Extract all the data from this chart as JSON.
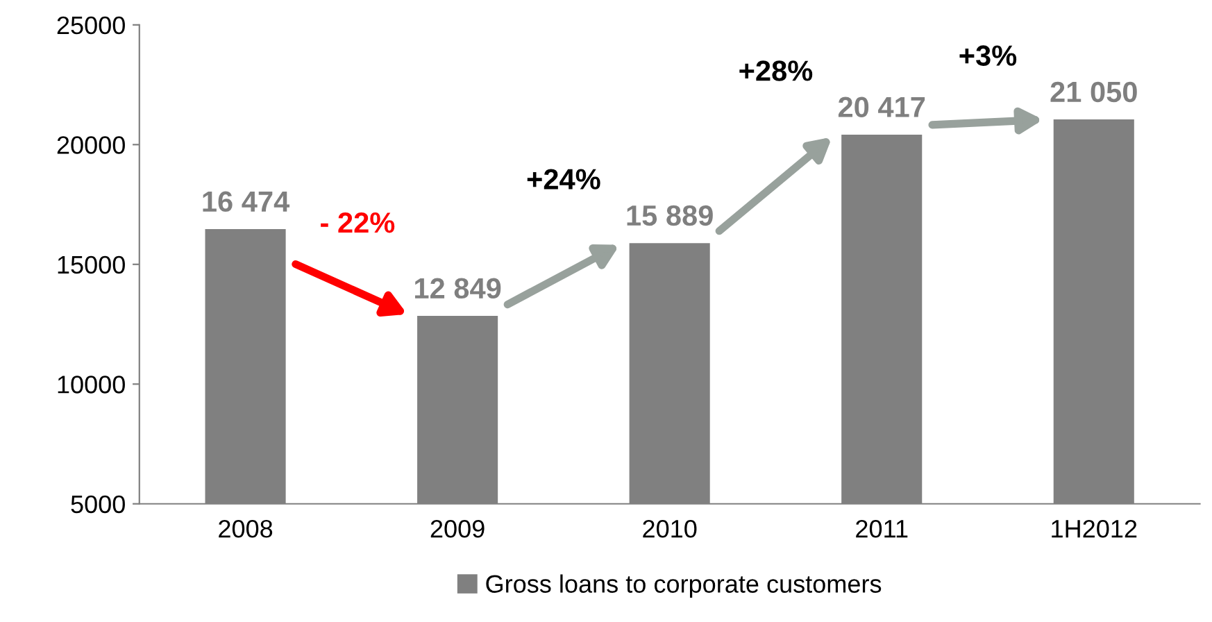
{
  "chart_data": {
    "type": "bar",
    "categories": [
      "2008",
      "2009",
      "2010",
      "2011",
      "1H2012"
    ],
    "series": [
      {
        "name": "Gross loans to corporate customers",
        "color": "#808080",
        "values": [
          16474,
          12849,
          15889,
          20417,
          21050
        ],
        "value_labels": [
          "16 474",
          "12 849",
          "15 889",
          "20 417",
          "21 050"
        ]
      }
    ],
    "ylim": [
      5000,
      25000
    ],
    "yticks": [
      5000,
      10000,
      15000,
      20000,
      25000
    ],
    "grid": false,
    "legend": "bottom",
    "annotations": [
      "- 22%",
      "+24%",
      "+28%",
      "+3%"
    ]
  }
}
